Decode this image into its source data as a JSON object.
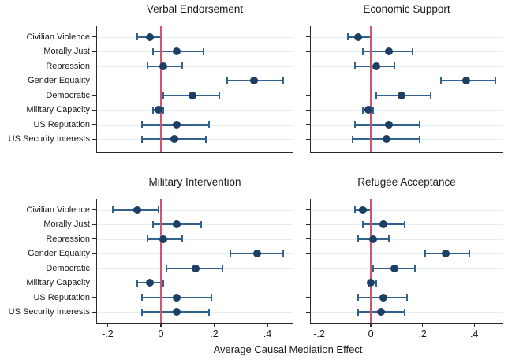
{
  "chart_data": {
    "type": "scatter",
    "subtype": "coefficient-dot-plot-with-95ci",
    "xlabel": "Average Causal Mediation Effect",
    "categories": [
      "Civilian Violence",
      "Morally Just",
      "Repression",
      "Gender Equality",
      "Democratic",
      "Military Capacity",
      "US Reputation",
      "US Security Interests"
    ],
    "xticks": {
      "values": [
        -0.2,
        0,
        0.2,
        0.4
      ],
      "labels": [
        "-.2",
        "0",
        ".2",
        ".4"
      ]
    },
    "xlim": [
      -0.24,
      0.5
    ],
    "zero_line_x": 0,
    "grid": "horizontal-light",
    "legend": "none",
    "panels": [
      {
        "title": "Verbal Endorsement",
        "estimate": [
          -0.04,
          0.06,
          0.01,
          0.35,
          0.12,
          -0.01,
          0.06,
          0.05
        ],
        "ci_low": [
          -0.09,
          -0.03,
          -0.05,
          0.25,
          0.01,
          -0.03,
          -0.07,
          -0.07
        ],
        "ci_high": [
          0.0,
          0.16,
          0.08,
          0.46,
          0.22,
          0.01,
          0.18,
          0.17
        ]
      },
      {
        "title": "Economic Support",
        "estimate": [
          -0.05,
          0.07,
          0.02,
          0.37,
          0.12,
          -0.01,
          0.07,
          0.06
        ],
        "ci_low": [
          -0.09,
          -0.03,
          -0.06,
          0.27,
          0.02,
          -0.03,
          -0.06,
          -0.07
        ],
        "ci_high": [
          0.0,
          0.16,
          0.09,
          0.48,
          0.23,
          0.01,
          0.19,
          0.19
        ]
      },
      {
        "title": "Military Intervention",
        "estimate": [
          -0.09,
          0.06,
          0.01,
          0.36,
          0.13,
          -0.04,
          0.06,
          0.06
        ],
        "ci_low": [
          -0.18,
          -0.03,
          -0.05,
          0.26,
          0.02,
          -0.09,
          -0.07,
          -0.07
        ],
        "ci_high": [
          -0.01,
          0.15,
          0.08,
          0.46,
          0.23,
          0.01,
          0.19,
          0.18
        ]
      },
      {
        "title": "Refugee Acceptance",
        "estimate": [
          -0.03,
          0.05,
          0.01,
          0.29,
          0.09,
          0.0,
          0.05,
          0.04
        ],
        "ci_low": [
          -0.06,
          -0.03,
          -0.05,
          0.21,
          0.01,
          -0.01,
          -0.05,
          -0.05
        ],
        "ci_high": [
          0.0,
          0.13,
          0.07,
          0.38,
          0.17,
          0.02,
          0.14,
          0.13
        ]
      }
    ],
    "colors": {
      "point": "#1c3f63",
      "ci_line": "#31618f",
      "zero_line": "#d05670",
      "grid_line": "#e4eef5",
      "axis": "#2a2a2a",
      "text": "#1a1a1a"
    }
  }
}
